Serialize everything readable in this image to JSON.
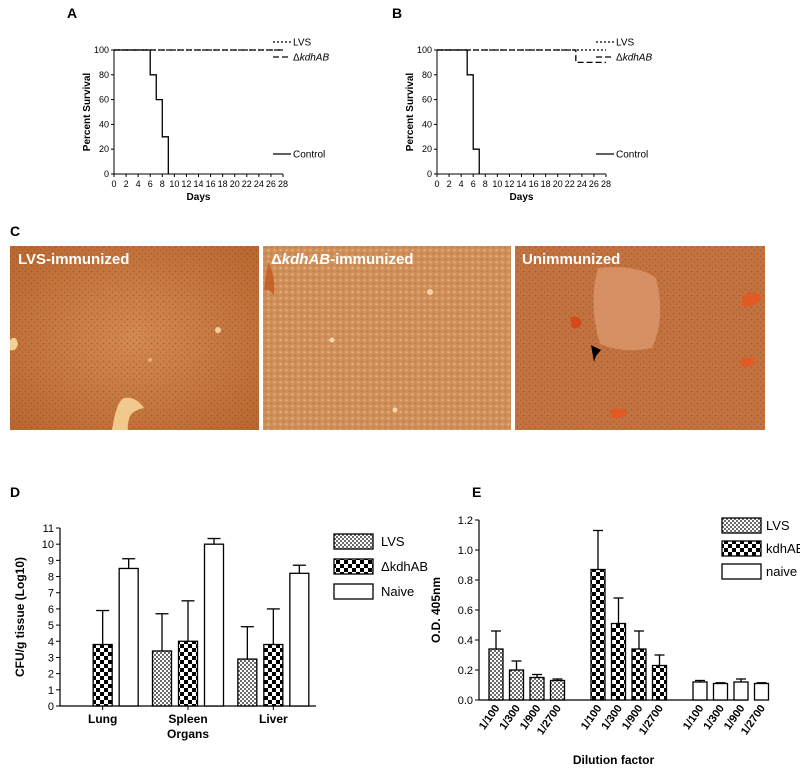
{
  "panels": {
    "A": "A",
    "B": "B",
    "C": "C",
    "D": "D",
    "E": "E"
  },
  "chart_data": [
    {
      "id": "A",
      "type": "line",
      "step": true,
      "xlabel": "Days",
      "ylabel": "Percent Survival",
      "xlim": [
        0,
        28
      ],
      "ylim": [
        0,
        100
      ],
      "xticks": [
        0,
        2,
        4,
        6,
        8,
        10,
        12,
        14,
        16,
        18,
        20,
        22,
        24,
        26,
        28
      ],
      "yticks": [
        0,
        20,
        40,
        60,
        80,
        100
      ],
      "series": [
        {
          "name": "LVS",
          "style": "dotted",
          "x": [
            0,
            28
          ],
          "y": [
            100,
            100
          ]
        },
        {
          "name": "ΔkdhAB",
          "style": "dashed",
          "x": [
            0,
            28
          ],
          "y": [
            100,
            100
          ]
        },
        {
          "name": "Control",
          "style": "solid",
          "x": [
            0,
            6,
            7,
            8,
            9
          ],
          "y": [
            100,
            80,
            60,
            30,
            0
          ]
        }
      ]
    },
    {
      "id": "B",
      "type": "line",
      "step": true,
      "xlabel": "Days",
      "ylabel": "Percent Survival",
      "xlim": [
        0,
        28
      ],
      "ylim": [
        0,
        100
      ],
      "xticks": [
        0,
        2,
        4,
        6,
        8,
        10,
        12,
        14,
        16,
        18,
        20,
        22,
        24,
        26,
        28
      ],
      "yticks": [
        0,
        20,
        40,
        60,
        80,
        100
      ],
      "series": [
        {
          "name": "LVS",
          "style": "dotted",
          "x": [
            0,
            28
          ],
          "y": [
            100,
            100
          ]
        },
        {
          "name": "ΔkdhAB",
          "style": "dashed",
          "x": [
            0,
            23,
            28
          ],
          "y": [
            100,
            90,
            90
          ]
        },
        {
          "name": "Control",
          "style": "solid",
          "x": [
            0,
            5,
            6,
            7
          ],
          "y": [
            100,
            80,
            20,
            0
          ]
        }
      ]
    },
    {
      "id": "D",
      "type": "bar",
      "xlabel": "Organs",
      "ylabel": "CFU/g tissue (Log10)",
      "ylim": [
        0,
        11
      ],
      "yticks": [
        0,
        1,
        2,
        3,
        4,
        5,
        6,
        7,
        8,
        9,
        10,
        11
      ],
      "categories": [
        "Lung",
        "Spleen",
        "Liver"
      ],
      "series": [
        {
          "name": "LVS",
          "values": [
            null,
            3.4,
            2.9
          ],
          "errors": [
            null,
            2.3,
            2.0
          ]
        },
        {
          "name": "ΔkdhAB",
          "values": [
            3.8,
            4.0,
            3.8
          ],
          "errors": [
            2.1,
            2.5,
            2.2
          ]
        },
        {
          "name": "Naive",
          "values": [
            8.5,
            10.0,
            8.2
          ],
          "errors": [
            0.6,
            0.35,
            0.5
          ]
        }
      ],
      "legend_position": "right"
    },
    {
      "id": "E",
      "type": "bar",
      "xlabel": "Dilution factor",
      "ylabel": "O.D. 405nm",
      "ylim": [
        0,
        1.2
      ],
      "yticks": [
        "0.0",
        "0.2",
        "0.4",
        "0.6",
        "0.8",
        "1.0",
        "1.2"
      ],
      "dilutions": [
        "1/100",
        "1/300",
        "1/900",
        "1/2700"
      ],
      "series": [
        {
          "name": "LVS",
          "values": [
            0.34,
            0.2,
            0.15,
            0.13
          ],
          "errors": [
            0.12,
            0.06,
            0.02,
            0.01
          ]
        },
        {
          "name": "kdhAB",
          "values": [
            0.87,
            0.51,
            0.34,
            0.23
          ],
          "errors": [
            0.26,
            0.17,
            0.12,
            0.07
          ]
        },
        {
          "name": "naive",
          "values": [
            0.12,
            0.11,
            0.12,
            0.11
          ],
          "errors": [
            0.01,
            0.005,
            0.02,
            0.005
          ]
        }
      ],
      "legend_position": "top-right"
    }
  ],
  "histology": [
    {
      "label": "LVS-immunized"
    },
    {
      "label_prefix": "Δ",
      "label_italic": "kdhAB",
      "label_suffix": "-immunized"
    },
    {
      "label": "Unimmunized"
    }
  ],
  "colors": {
    "tissue": "#c8743e",
    "tissue_light": "#d99560",
    "vessel": "#f0c590"
  }
}
